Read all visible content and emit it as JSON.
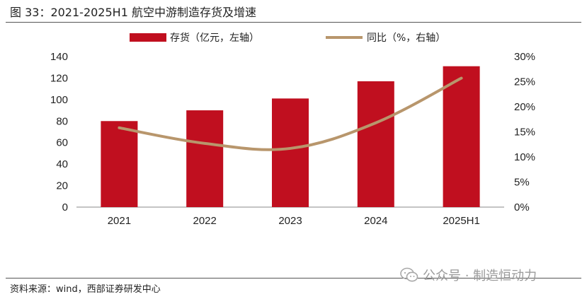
{
  "figure": {
    "title": "图 33：2021-2025H1 航空中游制造存货及增速",
    "source": "资料来源：wind，西部证券研发中心",
    "watermark": "公众号 · 制造恒动力"
  },
  "chart_data": {
    "type": "bar",
    "categories": [
      "2021",
      "2022",
      "2023",
      "2024",
      "2025H1"
    ],
    "series": [
      {
        "name": "存货（亿元，左轴）",
        "type": "bar",
        "axis": "left",
        "color": "#c00f1f",
        "values": [
          80,
          90,
          101,
          117,
          131
        ]
      },
      {
        "name": "同比（%，右轴）",
        "type": "line",
        "axis": "right",
        "color": "#b8966c",
        "values": [
          15.8,
          12.7,
          11.7,
          16.8,
          25.7
        ]
      }
    ],
    "yleft": {
      "min": 0,
      "max": 140,
      "ticks": [
        0,
        20,
        40,
        60,
        80,
        100,
        120,
        140
      ]
    },
    "yright": {
      "min": 0,
      "max": 30,
      "ticks": [
        "0%",
        "5%",
        "10%",
        "15%",
        "20%",
        "25%",
        "30%"
      ]
    },
    "legend_position": "top-center",
    "grid": false
  }
}
